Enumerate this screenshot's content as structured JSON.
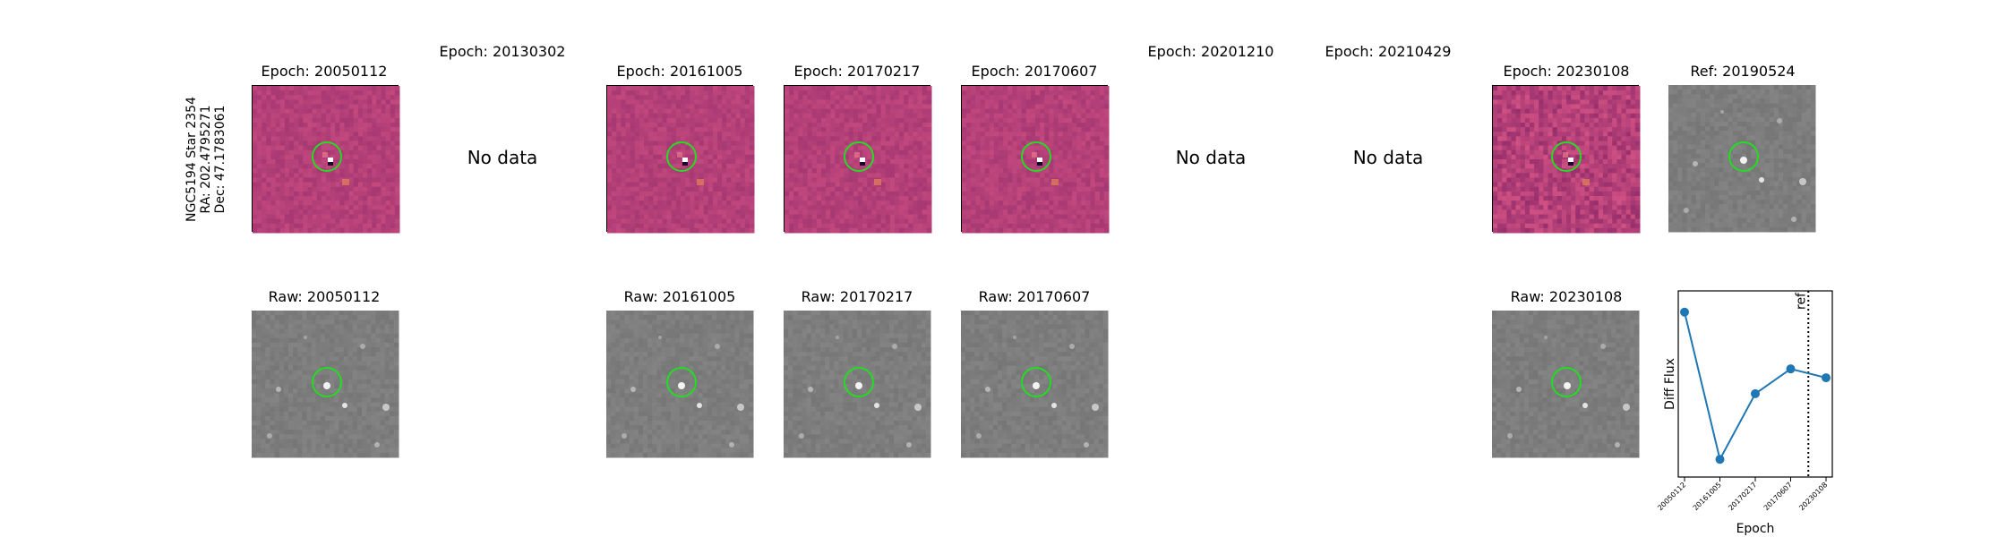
{
  "star_label": {
    "name": "NGC5194 Star 2354",
    "ra": "RA: 202.4795271",
    "dec": "Dec: 47.1783061"
  },
  "no_data_text": "No data",
  "top_row": [
    {
      "title": "Epoch: 20050112",
      "has_data": true
    },
    {
      "title": "Epoch: 20130302",
      "has_data": false
    },
    {
      "title": "Epoch: 20161005",
      "has_data": true
    },
    {
      "title": "Epoch: 20170217",
      "has_data": true
    },
    {
      "title": "Epoch: 20170607",
      "has_data": true
    },
    {
      "title": "Epoch: 20201210",
      "has_data": false
    },
    {
      "title": "Epoch: 20210429",
      "has_data": false
    },
    {
      "title": "Epoch: 20230108",
      "has_data": true
    },
    {
      "title": "Ref: 20190524",
      "has_data": true
    }
  ],
  "bottom_row": [
    {
      "title": "Raw: 20050112"
    },
    {
      "title": "Raw: 20161005"
    },
    {
      "title": "Raw: 20170217"
    },
    {
      "title": "Raw: 20170607"
    },
    {
      "title": "Raw: 20230108"
    }
  ],
  "colors": {
    "circle": "#22dd22",
    "series": "#1f77b4",
    "diff_base": "#b5407a",
    "raw_base": "#7a7a7a"
  },
  "chart_data": {
    "type": "line",
    "categories": [
      "20050112",
      "20161005",
      "20170217",
      "20170607",
      "20230108"
    ],
    "values": [
      0.93,
      0.1,
      0.47,
      0.61,
      0.56
    ],
    "xlabel": "Epoch",
    "ylabel": "Diff Flux",
    "ref_marker": {
      "label": "ref",
      "position_between": [
        "20170607",
        "20230108"
      ],
      "fraction": 0.5
    },
    "ylim": [
      0,
      1.05
    ],
    "show_y_ticks": false
  }
}
